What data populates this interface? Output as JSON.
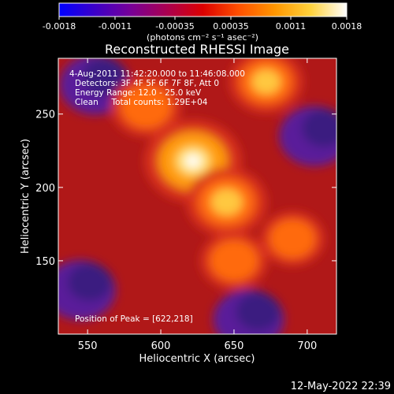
{
  "chart_data": {
    "type": "heatmap",
    "title": "Reconstructed RHESSI Image",
    "xlabel": "Heliocentric X (arcsec)",
    "ylabel": "Heliocentric Y (arcsec)",
    "xlim": [
      530,
      720
    ],
    "ylim": [
      100,
      288
    ],
    "x_ticks": [
      550,
      600,
      650,
      700
    ],
    "y_ticks": [
      150,
      200,
      250
    ],
    "colorbar": {
      "ticks": [
        -0.0018,
        -0.0011,
        -0.00035,
        0.00035,
        0.0011,
        0.0018
      ],
      "tick_labels": [
        "-0.0018",
        "-0.0011",
        "-0.00035",
        "0.00035",
        "0.0011",
        "0.0018"
      ],
      "label": "(photons cm⁻² s⁻¹ asec⁻²)",
      "colormap": [
        "#0000ff",
        "#3c00c8",
        "#780096",
        "#aa0050",
        "#dc0000",
        "#ff5000",
        "#ff9600",
        "#ffd23c",
        "#ffffff"
      ]
    },
    "annotations": [
      "4-Aug-2011 11:42:20.000 to 11:46:08.000",
      "Detectors: 3F 4F 5F 6F 7F 8F, Att 0",
      "Energy Range: 12.0 - 25.0 keV",
      "Clean     Total counts: 1.29E+04"
    ],
    "peak_text": "Position of Peak = [622,218]",
    "peak": [
      622,
      218
    ],
    "bright_features": [
      {
        "x": 622,
        "y": 218,
        "level": 1.0
      },
      {
        "x": 645,
        "y": 190,
        "level": 0.75
      },
      {
        "x": 672,
        "y": 272,
        "level": 0.65
      },
      {
        "x": 590,
        "y": 255,
        "level": 0.6
      },
      {
        "x": 650,
        "y": 150,
        "level": 0.55
      },
      {
        "x": 690,
        "y": 165,
        "level": 0.5
      }
    ],
    "dim_regions": [
      {
        "x": 545,
        "y": 130
      },
      {
        "x": 555,
        "y": 270
      },
      {
        "x": 705,
        "y": 235
      },
      {
        "x": 660,
        "y": 110
      }
    ]
  },
  "footer": {
    "timestamp": "12-May-2022 22:39"
  }
}
